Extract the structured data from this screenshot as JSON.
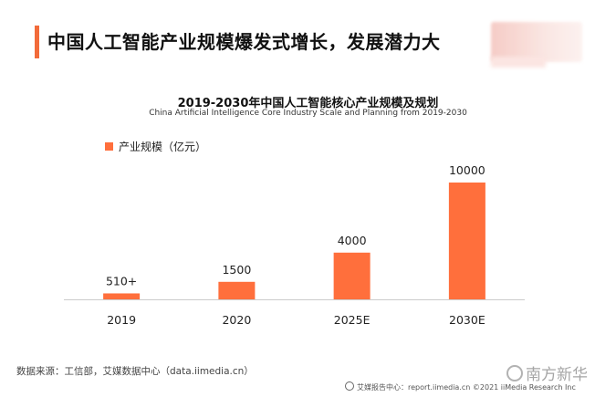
{
  "header": {
    "title": "中国人工智能产业规模爆发式增长，发展潜力大"
  },
  "colors": {
    "accent": "#f26b3a",
    "bar": "#ff6f3c",
    "axis": "#cccccc"
  },
  "chart_data": {
    "type": "bar",
    "title": "2019-2030年中国人工智能核心产业规模及规划",
    "subtitle": "China Artificial Intelligence Core Industry Scale and Planning from 2019-2030",
    "legend": {
      "label": "产业规模（亿元）",
      "placement": "top-left"
    },
    "categories": [
      "2019",
      "2020",
      "2025E",
      "2030E"
    ],
    "values": [
      510,
      1500,
      4000,
      10000
    ],
    "data_labels": [
      "510+",
      "1500",
      "4000",
      "10000"
    ],
    "ylim": [
      0,
      10000
    ],
    "grid": false
  },
  "footer": {
    "source": "数据来源：工信部，艾媒数据中心（data.iimedia.cn）",
    "right": "艾媒报告中心：report.iimedia.cn  ©2021  iiMedia Research  Inc",
    "watermark": "南方新华"
  }
}
